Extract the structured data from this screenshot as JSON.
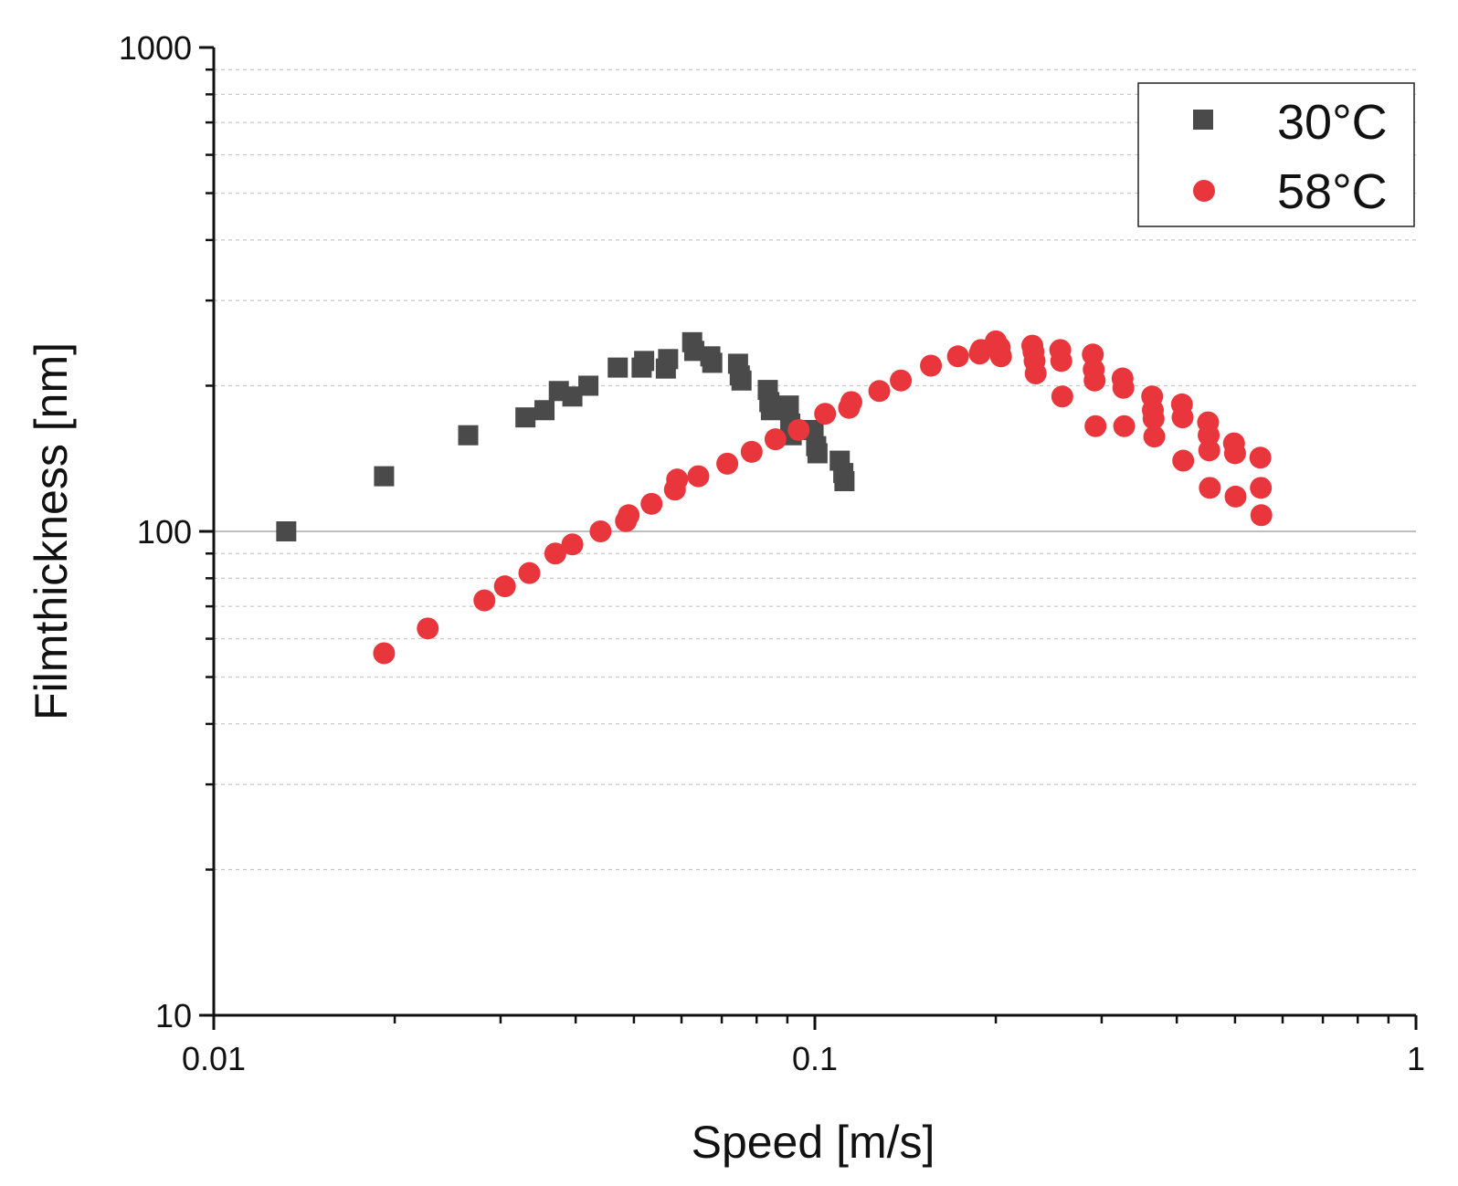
{
  "chart_data": {
    "type": "scatter",
    "title": "",
    "xlabel": "Speed [m/s]",
    "ylabel": "Filmthickness [nm]",
    "xscale": "log",
    "yscale": "log",
    "xlim": [
      0.01,
      1
    ],
    "ylim": [
      10,
      1000
    ],
    "x_ticks": [
      {
        "value": 0.01,
        "label": "0.01"
      },
      {
        "value": 0.1,
        "label": "0.1"
      },
      {
        "value": 1,
        "label": "1"
      }
    ],
    "y_ticks": [
      {
        "value": 10,
        "label": "10"
      },
      {
        "value": 100,
        "label": "100"
      },
      {
        "value": 1000,
        "label": "1000"
      }
    ],
    "grid": "dashed minor horizontal, solid at 100",
    "legend_position": "top-right",
    "series": [
      {
        "name": "30°C",
        "marker": "square",
        "color": "#4a4a4a",
        "points": [
          [
            0.0132,
            100
          ],
          [
            0.0192,
            130
          ],
          [
            0.0265,
            158
          ],
          [
            0.033,
            172
          ],
          [
            0.0355,
            178
          ],
          [
            0.0375,
            195
          ],
          [
            0.0395,
            190
          ],
          [
            0.042,
            200
          ],
          [
            0.047,
            218
          ],
          [
            0.0515,
            218
          ],
          [
            0.052,
            225
          ],
          [
            0.0565,
            217
          ],
          [
            0.057,
            227
          ],
          [
            0.0625,
            246
          ],
          [
            0.063,
            236
          ],
          [
            0.067,
            230
          ],
          [
            0.0675,
            223
          ],
          [
            0.0745,
            222
          ],
          [
            0.075,
            210
          ],
          [
            0.0755,
            205
          ],
          [
            0.0835,
            196
          ],
          [
            0.084,
            185
          ],
          [
            0.0845,
            178
          ],
          [
            0.0905,
            182
          ],
          [
            0.091,
            167
          ],
          [
            0.0915,
            158
          ],
          [
            0.0995,
            162
          ],
          [
            0.1005,
            150
          ],
          [
            0.101,
            145
          ],
          [
            0.11,
            140
          ],
          [
            0.1115,
            132
          ],
          [
            0.112,
            127
          ]
        ]
      },
      {
        "name": "58°C",
        "marker": "circle",
        "color": "#e8363c",
        "points": [
          [
            0.0192,
            56
          ],
          [
            0.0227,
            63
          ],
          [
            0.0282,
            72
          ],
          [
            0.0305,
            77
          ],
          [
            0.0335,
            82
          ],
          [
            0.037,
            90
          ],
          [
            0.0395,
            94
          ],
          [
            0.044,
            100
          ],
          [
            0.0485,
            105
          ],
          [
            0.049,
            108
          ],
          [
            0.0535,
            114
          ],
          [
            0.0585,
            122
          ],
          [
            0.059,
            128
          ],
          [
            0.064,
            130
          ],
          [
            0.0715,
            138
          ],
          [
            0.0785,
            146
          ],
          [
            0.086,
            155
          ],
          [
            0.094,
            162
          ],
          [
            0.104,
            175
          ],
          [
            0.114,
            180
          ],
          [
            0.115,
            185
          ],
          [
            0.128,
            195
          ],
          [
            0.139,
            205
          ],
          [
            0.156,
            220
          ],
          [
            0.173,
            230
          ],
          [
            0.188,
            233
          ],
          [
            0.189,
            237
          ],
          [
            0.2,
            247
          ],
          [
            0.203,
            240
          ],
          [
            0.204,
            230
          ],
          [
            0.23,
            242
          ],
          [
            0.231,
            235
          ],
          [
            0.232,
            225
          ],
          [
            0.233,
            212
          ],
          [
            0.256,
            237
          ],
          [
            0.257,
            225
          ],
          [
            0.258,
            190
          ],
          [
            0.29,
            232
          ],
          [
            0.291,
            216
          ],
          [
            0.292,
            205
          ],
          [
            0.293,
            165
          ],
          [
            0.325,
            207
          ],
          [
            0.326,
            198
          ],
          [
            0.327,
            165
          ],
          [
            0.364,
            190
          ],
          [
            0.365,
            178
          ],
          [
            0.366,
            171
          ],
          [
            0.367,
            157
          ],
          [
            0.408,
            183
          ],
          [
            0.409,
            172
          ],
          [
            0.41,
            140
          ],
          [
            0.451,
            168
          ],
          [
            0.452,
            158
          ],
          [
            0.453,
            147
          ],
          [
            0.454,
            123
          ],
          [
            0.498,
            152
          ],
          [
            0.5,
            145
          ],
          [
            0.501,
            118
          ],
          [
            0.551,
            142
          ],
          [
            0.552,
            123
          ],
          [
            0.553,
            108
          ]
        ]
      }
    ]
  }
}
